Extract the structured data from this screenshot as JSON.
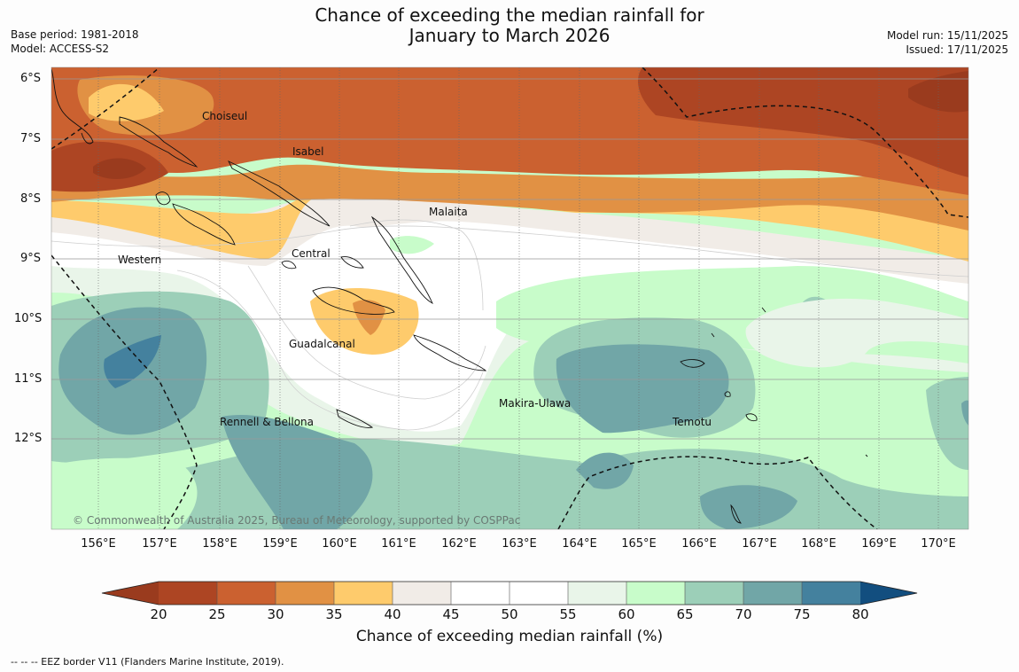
{
  "title": {
    "line1": "Chance of exceeding the median rainfall for",
    "line2": "January to March 2026"
  },
  "meta_left": {
    "base_period": "Base period: 1981-2018",
    "model": "Model: ACCESS-S2"
  },
  "meta_right": {
    "model_run": "Model run: 15/11/2025",
    "issued": "Issued: 17/11/2025"
  },
  "map": {
    "lat_labels": [
      "6°S",
      "7°S",
      "8°S",
      "9°S",
      "10°S",
      "11°S",
      "12°S"
    ],
    "lon_labels": [
      "156°E",
      "157°E",
      "158°E",
      "159°E",
      "160°E",
      "161°E",
      "162°E",
      "163°E",
      "164°E",
      "165°E",
      "166°E",
      "167°E",
      "168°E",
      "169°E",
      "170°E"
    ],
    "regions": {
      "choiseul": "Choiseul",
      "isabel": "Isabel",
      "malaita": "Malaita",
      "central": "Central",
      "western": "Western",
      "guadalcanal": "Guadalcanal",
      "makira": "Makira-Ulawa",
      "rennell": "Rennell & Bellona",
      "temotu": "Temotu"
    },
    "copyright": "© Commonwealth of Australia 2025, Bureau of Meteorology, supported by COSPPac"
  },
  "colorbar": {
    "title": "Chance of exceeding median rainfall (%)",
    "ticks": [
      "20",
      "25",
      "30",
      "35",
      "40",
      "45",
      "50",
      "55",
      "60",
      "65",
      "70",
      "75",
      "80"
    ],
    "colors": {
      "lt20": "#9a3b1e",
      "c20_25": "#ad4523",
      "c25_30": "#cb6130",
      "c30_35": "#e19144",
      "c35_40": "#fecb6c",
      "c40_45": "#f1ece7",
      "c45_50": "#ffffff",
      "c50_55": "#ffffff",
      "c55_60": "#e9f5e9",
      "c60_65": "#c8fcca",
      "c65_70": "#9ccfb8",
      "c70_75": "#71a6a7",
      "c75_80": "#44819e",
      "gt80": "#124e7f"
    }
  },
  "legend_note": "--  --  -- EEZ border V11 (Flanders Marine Institute, 2019)."
}
